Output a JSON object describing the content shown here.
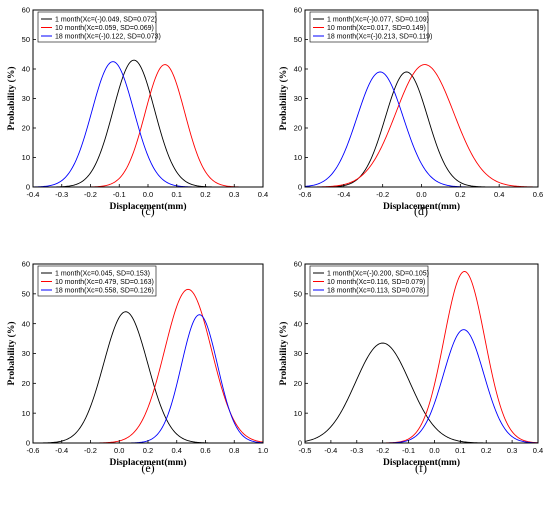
{
  "chart_data": [
    {
      "type": "line",
      "panel_label": "(c)",
      "xlabel": "Displacement(mm)",
      "ylabel": "Probability (%)",
      "xlim": [
        -0.4,
        0.4
      ],
      "ylim": [
        0,
        60
      ],
      "xticks": [
        "-0.4",
        "-0.3",
        "-0.2",
        "-0.1",
        "0.0",
        "0.1",
        "0.2",
        "0.3",
        "0.4"
      ],
      "yticks": [
        "0",
        "10",
        "20",
        "30",
        "40",
        "50",
        "60"
      ],
      "legend_position": "top-left",
      "grid": false,
      "series": [
        {
          "name": "1 month(Xc=(-)0.049, SD=0.072)",
          "color": "#000000",
          "mean": -0.049,
          "sd": 0.072,
          "peak": 43
        },
        {
          "name": "10 month(Xc=0.059, SD=0.069)",
          "color": "#ff0000",
          "mean": 0.059,
          "sd": 0.069,
          "peak": 41.5
        },
        {
          "name": "18 month(Xc=(-)0.122, SD=0.073)",
          "color": "#0000ff",
          "mean": -0.122,
          "sd": 0.073,
          "peak": 42.5
        }
      ]
    },
    {
      "type": "line",
      "panel_label": "(d)",
      "xlabel": "Displacement(mm)",
      "ylabel": "Probability (%)",
      "xlim": [
        -0.6,
        0.6
      ],
      "ylim": [
        0,
        60
      ],
      "xticks": [
        "-0.6",
        "-0.4",
        "-0.2",
        "0.0",
        "0.2",
        "0.4",
        "0.6"
      ],
      "yticks": [
        "0",
        "10",
        "20",
        "30",
        "40",
        "50",
        "60"
      ],
      "legend_position": "top-left",
      "grid": false,
      "series": [
        {
          "name": "1 month(Xc=(-)0.077, SD=0.109)",
          "color": "#000000",
          "mean": -0.077,
          "sd": 0.109,
          "peak": 39
        },
        {
          "name": "10 month(Xc=0.017, SD=0.149)",
          "color": "#ff0000",
          "mean": 0.017,
          "sd": 0.149,
          "peak": 41.5
        },
        {
          "name": "18 month(Xc=(-)0.213, SD=0.119)",
          "color": "#0000ff",
          "mean": -0.213,
          "sd": 0.119,
          "peak": 39
        }
      ]
    },
    {
      "type": "line",
      "panel_label": "(e)",
      "xlabel": "Displacement(mm)",
      "ylabel": "Probability (%)",
      "xlim": [
        -0.6,
        1.0
      ],
      "ylim": [
        0,
        60
      ],
      "xticks": [
        "-0.6",
        "-0.4",
        "-0.2",
        "0.0",
        "0.2",
        "0.4",
        "0.6",
        "0.8",
        "1.0"
      ],
      "yticks": [
        "0",
        "10",
        "20",
        "30",
        "40",
        "50",
        "60"
      ],
      "legend_position": "top-left",
      "grid": false,
      "series": [
        {
          "name": "1 month(Xc=0.045, SD=0.153)",
          "color": "#000000",
          "mean": 0.045,
          "sd": 0.153,
          "peak": 44
        },
        {
          "name": "10 month(Xc=0.479, SD=0.163)",
          "color": "#ff0000",
          "mean": 0.479,
          "sd": 0.163,
          "peak": 51.5
        },
        {
          "name": "18 month(Xc=0.558, SD=0.126)",
          "color": "#0000ff",
          "mean": 0.558,
          "sd": 0.126,
          "peak": 43
        }
      ]
    },
    {
      "type": "line",
      "panel_label": "(f)",
      "xlabel": "Displacement(mm)",
      "ylabel": "Probability (%)",
      "xlim": [
        -0.5,
        0.4
      ],
      "ylim": [
        0,
        60
      ],
      "xticks": [
        "-0.5",
        "-0.4",
        "-0.3",
        "-0.2",
        "-0.1",
        "0.0",
        "0.1",
        "0.2",
        "0.3",
        "0.4"
      ],
      "yticks": [
        "0",
        "10",
        "20",
        "30",
        "40",
        "50",
        "60"
      ],
      "legend_position": "top-left",
      "grid": false,
      "series": [
        {
          "name": "1 month(Xc=(-)0.200, SD=0.105)",
          "color": "#000000",
          "mean": -0.2,
          "sd": 0.105,
          "peak": 33.5
        },
        {
          "name": "10 month(Xc=0.116, SD=0.079)",
          "color": "#ff0000",
          "mean": 0.116,
          "sd": 0.079,
          "peak": 57.5
        },
        {
          "name": "18 month(Xc=0.113, SD=0.078)",
          "color": "#0000ff",
          "mean": 0.113,
          "sd": 0.078,
          "peak": 38
        }
      ]
    }
  ]
}
